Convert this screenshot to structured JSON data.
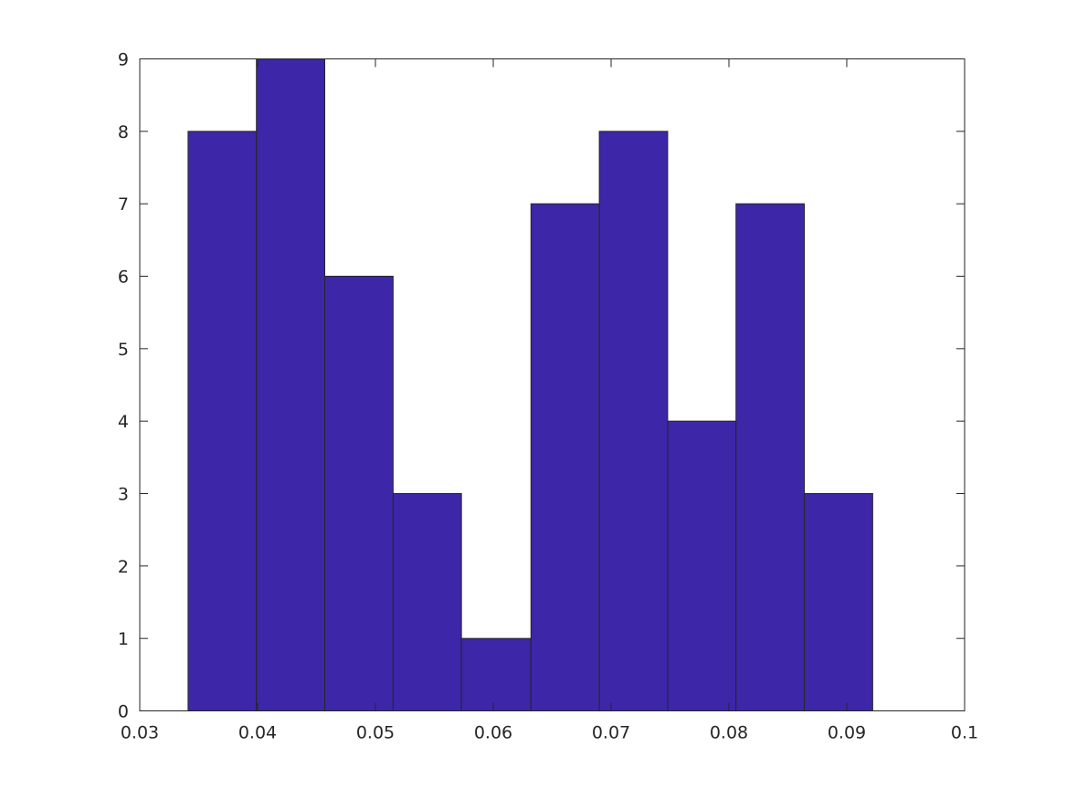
{
  "chart_data": {
    "type": "bar",
    "title": "",
    "xlabel": "",
    "ylabel": "",
    "xlim": [
      0.03,
      0.1
    ],
    "ylim": [
      0,
      9
    ],
    "xticks": [
      0.03,
      0.04,
      0.05,
      0.06,
      0.07,
      0.08,
      0.09,
      0.1
    ],
    "xtick_labels": [
      "0.03",
      "0.04",
      "0.05",
      "0.06",
      "0.07",
      "0.08",
      "0.09",
      "0.1"
    ],
    "yticks": [
      0,
      1,
      2,
      3,
      4,
      5,
      6,
      7,
      8,
      9
    ],
    "ytick_labels": [
      "0",
      "1",
      "2",
      "3",
      "4",
      "5",
      "6",
      "7",
      "8",
      "9"
    ],
    "bin_edges": [
      0.0341,
      0.0399,
      0.0457,
      0.0515,
      0.0573,
      0.0632,
      0.069,
      0.0748,
      0.0806,
      0.0864,
      0.0922
    ],
    "values": [
      8,
      9,
      6,
      3,
      1,
      7,
      8,
      4,
      7,
      3
    ],
    "bar_color": "#3d26a8",
    "grid": false,
    "box": true
  }
}
